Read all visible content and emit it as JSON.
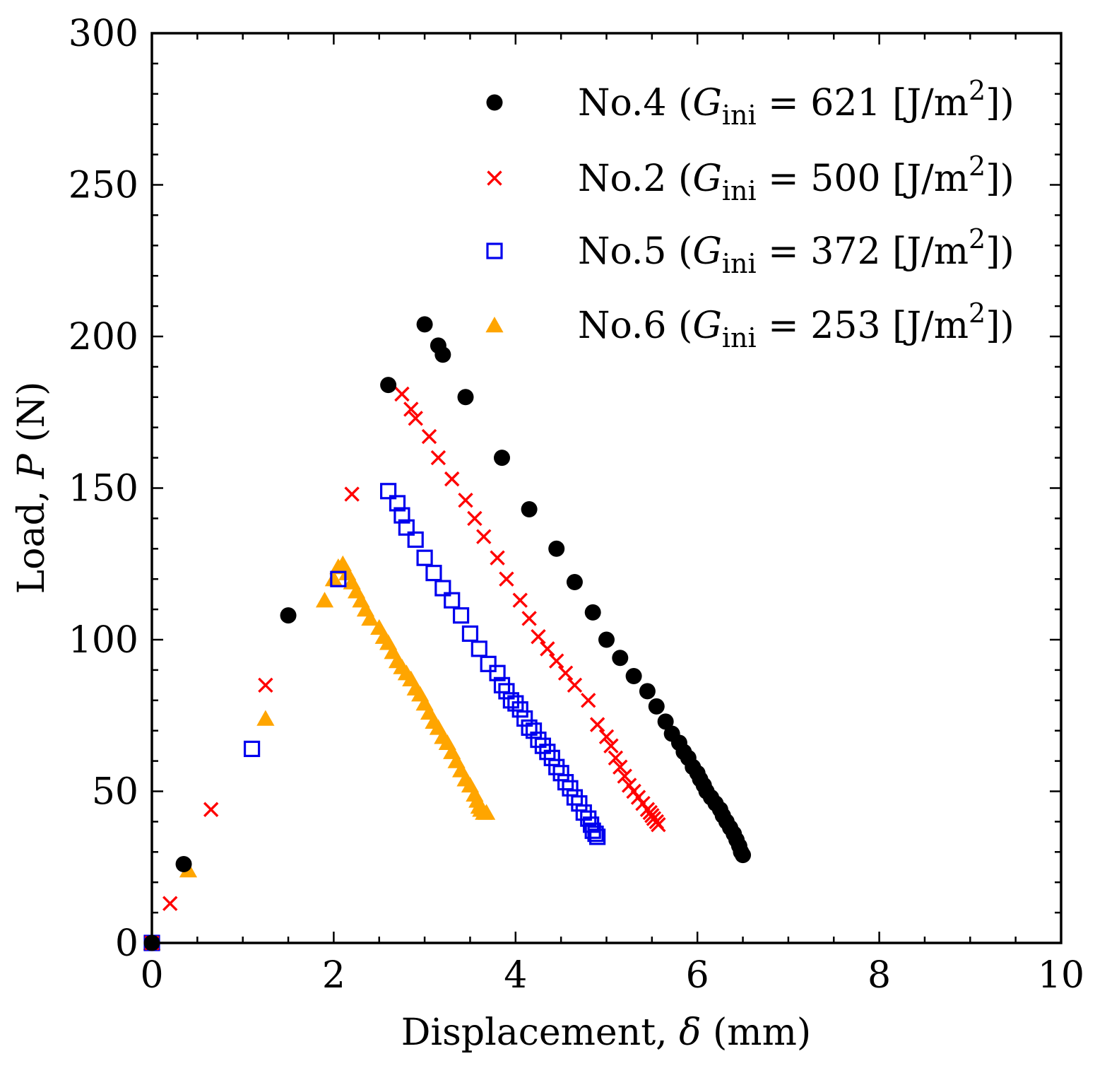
{
  "chart_data": {
    "type": "scatter",
    "title": "",
    "xlabel": {
      "prefix": "Displacement, ",
      "symbol": "δ",
      "unit": " (mm)"
    },
    "ylabel": {
      "prefix": "Load, ",
      "symbol": "P",
      "unit": " (N)"
    },
    "xlim": [
      0,
      10
    ],
    "ylim": [
      0,
      300
    ],
    "xticks": [
      "0",
      "2",
      "4",
      "6",
      "8",
      "10"
    ],
    "yticks": [
      "0",
      "50",
      "100",
      "150",
      "200",
      "250",
      "300"
    ],
    "xtick_values": [
      0,
      2,
      4,
      6,
      8,
      10
    ],
    "ytick_values": [
      0,
      50,
      100,
      150,
      200,
      250,
      300
    ],
    "grid": false,
    "legend_position": "top-right",
    "series": [
      {
        "name": "No.4",
        "legend": {
          "prefix": "No.4 (",
          "G": "G",
          "sub": "ini",
          "eq": " = 621 [J/m",
          "sup": "2",
          "suffix": "])"
        },
        "marker": "circle",
        "color": "#000000",
        "points": [
          [
            0,
            0
          ],
          [
            0.35,
            26
          ],
          [
            1.5,
            108
          ],
          [
            2.6,
            184
          ],
          [
            3.0,
            204
          ],
          [
            3.15,
            197
          ],
          [
            3.2,
            194
          ],
          [
            3.45,
            180
          ],
          [
            3.85,
            160
          ],
          [
            4.15,
            143
          ],
          [
            4.45,
            130
          ],
          [
            4.65,
            119
          ],
          [
            4.85,
            109
          ],
          [
            5.0,
            100
          ],
          [
            5.15,
            94
          ],
          [
            5.3,
            88
          ],
          [
            5.45,
            83
          ],
          [
            5.55,
            78
          ],
          [
            5.65,
            73
          ],
          [
            5.72,
            69
          ],
          [
            5.8,
            66
          ],
          [
            5.85,
            63
          ],
          [
            5.9,
            61
          ],
          [
            5.95,
            58
          ],
          [
            6.0,
            56
          ],
          [
            6.03,
            54
          ],
          [
            6.07,
            52
          ],
          [
            6.1,
            50
          ],
          [
            6.15,
            48
          ],
          [
            6.2,
            46
          ],
          [
            6.25,
            44
          ],
          [
            6.28,
            42
          ],
          [
            6.32,
            40
          ],
          [
            6.36,
            38
          ],
          [
            6.4,
            36
          ],
          [
            6.43,
            34
          ],
          [
            6.46,
            32
          ],
          [
            6.48,
            30
          ],
          [
            6.5,
            29
          ]
        ]
      },
      {
        "name": "No.2",
        "legend": {
          "prefix": "No.2 (",
          "G": "G",
          "sub": "ini",
          "eq": " = 500 [J/m",
          "sup": "2",
          "suffix": "])"
        },
        "marker": "x",
        "color": "#ff0000",
        "points": [
          [
            0,
            0
          ],
          [
            0.2,
            13
          ],
          [
            0.65,
            44
          ],
          [
            1.25,
            85
          ],
          [
            2.2,
            148
          ],
          [
            2.75,
            181
          ],
          [
            2.85,
            176
          ],
          [
            2.9,
            173
          ],
          [
            3.05,
            167
          ],
          [
            3.15,
            160
          ],
          [
            3.3,
            153
          ],
          [
            3.45,
            146
          ],
          [
            3.55,
            140
          ],
          [
            3.65,
            134
          ],
          [
            3.8,
            127
          ],
          [
            3.9,
            120
          ],
          [
            4.05,
            113
          ],
          [
            4.15,
            107
          ],
          [
            4.25,
            101
          ],
          [
            4.35,
            97
          ],
          [
            4.45,
            93
          ],
          [
            4.55,
            89
          ],
          [
            4.65,
            85
          ],
          [
            4.8,
            80
          ],
          [
            4.9,
            72
          ],
          [
            5.0,
            68
          ],
          [
            5.05,
            65
          ],
          [
            5.1,
            61
          ],
          [
            5.15,
            58
          ],
          [
            5.2,
            55
          ],
          [
            5.25,
            52
          ],
          [
            5.3,
            50
          ],
          [
            5.35,
            48
          ],
          [
            5.4,
            46
          ],
          [
            5.45,
            44
          ],
          [
            5.48,
            43
          ],
          [
            5.5,
            42
          ],
          [
            5.52,
            41
          ],
          [
            5.55,
            40
          ],
          [
            5.57,
            39
          ]
        ]
      },
      {
        "name": "No.5",
        "legend": {
          "prefix": "No.5 (",
          "G": "G",
          "sub": "ini",
          "eq": " = 372 [J/m",
          "sup": "2",
          "suffix": "])"
        },
        "marker": "square-open",
        "color": "#0000ee",
        "points": [
          [
            0,
            0
          ],
          [
            1.1,
            64
          ],
          [
            2.05,
            120
          ],
          [
            2.6,
            149
          ],
          [
            2.7,
            145
          ],
          [
            2.75,
            141
          ],
          [
            2.8,
            137
          ],
          [
            2.9,
            133
          ],
          [
            3.0,
            127
          ],
          [
            3.1,
            122
          ],
          [
            3.2,
            117
          ],
          [
            3.3,
            113
          ],
          [
            3.4,
            108
          ],
          [
            3.5,
            102
          ],
          [
            3.6,
            97
          ],
          [
            3.7,
            92
          ],
          [
            3.8,
            89
          ],
          [
            3.85,
            85
          ],
          [
            3.9,
            83
          ],
          [
            3.95,
            80
          ],
          [
            4.0,
            79
          ],
          [
            4.05,
            77
          ],
          [
            4.1,
            74
          ],
          [
            4.15,
            71
          ],
          [
            4.2,
            70
          ],
          [
            4.25,
            67
          ],
          [
            4.3,
            65
          ],
          [
            4.35,
            63
          ],
          [
            4.4,
            61
          ],
          [
            4.45,
            58
          ],
          [
            4.5,
            56
          ],
          [
            4.55,
            53
          ],
          [
            4.6,
            51
          ],
          [
            4.65,
            48
          ],
          [
            4.7,
            46
          ],
          [
            4.75,
            43
          ],
          [
            4.8,
            41
          ],
          [
            4.83,
            39
          ],
          [
            4.85,
            37
          ],
          [
            4.88,
            36
          ],
          [
            4.9,
            35
          ]
        ]
      },
      {
        "name": "No.6",
        "legend": {
          "prefix": "No.6 (",
          "G": "G",
          "sub": "ini",
          "eq": " = 253 [J/m",
          "sup": "2",
          "suffix": "])"
        },
        "marker": "triangle",
        "color": "#ffa500",
        "points": [
          [
            0,
            0
          ],
          [
            0.4,
            24
          ],
          [
            1.25,
            74
          ],
          [
            1.9,
            113
          ],
          [
            2.0,
            120
          ],
          [
            2.05,
            124
          ],
          [
            2.1,
            125
          ],
          [
            2.15,
            122
          ],
          [
            2.2,
            119
          ],
          [
            2.25,
            116
          ],
          [
            2.3,
            113
          ],
          [
            2.35,
            110
          ],
          [
            2.4,
            107
          ],
          [
            2.5,
            104
          ],
          [
            2.55,
            101
          ],
          [
            2.6,
            99
          ],
          [
            2.65,
            96
          ],
          [
            2.7,
            93
          ],
          [
            2.75,
            91
          ],
          [
            2.8,
            89
          ],
          [
            2.85,
            87
          ],
          [
            2.9,
            84
          ],
          [
            2.95,
            82
          ],
          [
            3.0,
            79
          ],
          [
            3.05,
            76
          ],
          [
            3.1,
            73
          ],
          [
            3.15,
            71
          ],
          [
            3.2,
            68
          ],
          [
            3.25,
            66
          ],
          [
            3.3,
            63
          ],
          [
            3.35,
            60
          ],
          [
            3.4,
            57
          ],
          [
            3.45,
            54
          ],
          [
            3.5,
            52
          ],
          [
            3.55,
            49
          ],
          [
            3.58,
            47
          ],
          [
            3.6,
            45
          ],
          [
            3.62,
            44
          ],
          [
            3.65,
            43
          ],
          [
            3.68,
            43
          ]
        ]
      }
    ]
  }
}
